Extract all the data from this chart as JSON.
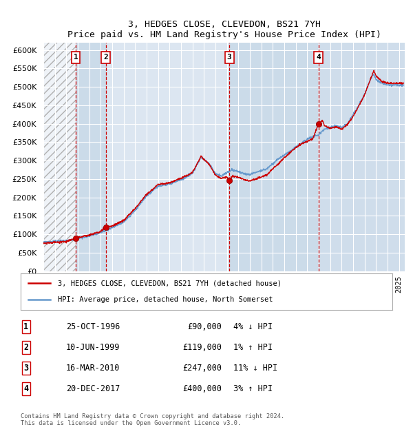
{
  "title": "3, HEDGES CLOSE, CLEVEDON, BS21 7YH",
  "subtitle": "Price paid vs. HM Land Registry's House Price Index (HPI)",
  "ylim": [
    0,
    620000
  ],
  "yticks": [
    0,
    50000,
    100000,
    150000,
    200000,
    250000,
    300000,
    350000,
    400000,
    450000,
    500000,
    550000,
    600000
  ],
  "xlim_start": 1994.0,
  "xlim_end": 2025.5,
  "background_color": "#ffffff",
  "plot_bg_color": "#dce6f1",
  "grid_color": "#ffffff",
  "sale_color": "#cc0000",
  "hpi_color": "#6699cc",
  "transactions": [
    {
      "num": 1,
      "date_dec": 1996.82,
      "price": 90000,
      "label": "25-OCT-1996",
      "price_str": "£90,000",
      "hpi_str": "4% ↓ HPI"
    },
    {
      "num": 2,
      "date_dec": 1999.44,
      "price": 119000,
      "label": "10-JUN-1999",
      "price_str": "£119,000",
      "hpi_str": "1% ↑ HPI"
    },
    {
      "num": 3,
      "date_dec": 2010.21,
      "price": 247000,
      "label": "16-MAR-2010",
      "price_str": "£247,000",
      "hpi_str": "11% ↓ HPI"
    },
    {
      "num": 4,
      "date_dec": 2017.97,
      "price": 400000,
      "label": "20-DEC-2017",
      "price_str": "£400,000",
      "hpi_str": "3% ↑ HPI"
    }
  ],
  "legend_line1": "3, HEDGES CLOSE, CLEVEDON, BS21 7YH (detached house)",
  "legend_line2": "HPI: Average price, detached house, North Somerset",
  "footnote": "Contains HM Land Registry data © Crown copyright and database right 2024.\nThis data is licensed under the Open Government Licence v3.0.",
  "table_rows": [
    [
      "1",
      "25-OCT-1996",
      "£90,000",
      "4% ↓ HPI"
    ],
    [
      "2",
      "10-JUN-1999",
      "£119,000",
      "1% ↑ HPI"
    ],
    [
      "3",
      "16-MAR-2010",
      "£247,000",
      "11% ↓ HPI"
    ],
    [
      "4",
      "20-DEC-2017",
      "£400,000",
      "3% ↑ HPI"
    ]
  ],
  "hpi_anchors": [
    [
      1994.0,
      78000
    ],
    [
      1995.0,
      81000
    ],
    [
      1996.0,
      83000
    ],
    [
      1997.0,
      88000
    ],
    [
      1998.0,
      95000
    ],
    [
      1999.0,
      105000
    ],
    [
      2000.0,
      118000
    ],
    [
      2001.0,
      133000
    ],
    [
      2002.0,
      165000
    ],
    [
      2003.0,
      205000
    ],
    [
      2004.0,
      230000
    ],
    [
      2005.0,
      237000
    ],
    [
      2006.0,
      248000
    ],
    [
      2007.0,
      265000
    ],
    [
      2007.75,
      310000
    ],
    [
      2008.5,
      290000
    ],
    [
      2009.0,
      265000
    ],
    [
      2009.5,
      258000
    ],
    [
      2010.0,
      268000
    ],
    [
      2010.5,
      275000
    ],
    [
      2011.0,
      270000
    ],
    [
      2011.5,
      265000
    ],
    [
      2012.0,
      262000
    ],
    [
      2012.5,
      268000
    ],
    [
      2013.0,
      272000
    ],
    [
      2013.5,
      278000
    ],
    [
      2014.0,
      292000
    ],
    [
      2014.5,
      305000
    ],
    [
      2015.0,
      315000
    ],
    [
      2015.5,
      325000
    ],
    [
      2016.0,
      338000
    ],
    [
      2016.5,
      348000
    ],
    [
      2017.0,
      358000
    ],
    [
      2017.5,
      365000
    ],
    [
      2018.0,
      370000
    ],
    [
      2018.5,
      385000
    ],
    [
      2019.0,
      390000
    ],
    [
      2019.5,
      395000
    ],
    [
      2020.0,
      390000
    ],
    [
      2020.5,
      400000
    ],
    [
      2021.0,
      425000
    ],
    [
      2021.5,
      450000
    ],
    [
      2022.0,
      480000
    ],
    [
      2022.5,
      520000
    ],
    [
      2022.8,
      535000
    ],
    [
      2023.0,
      520000
    ],
    [
      2023.5,
      510000
    ],
    [
      2024.0,
      505000
    ],
    [
      2024.5,
      505000
    ],
    [
      2025.4,
      505000
    ]
  ],
  "sale_anchors": [
    [
      1994.0,
      75000
    ],
    [
      1995.0,
      78000
    ],
    [
      1996.0,
      80000
    ],
    [
      1996.82,
      90000
    ],
    [
      1997.0,
      91000
    ],
    [
      1998.0,
      98000
    ],
    [
      1999.0,
      108000
    ],
    [
      1999.44,
      119000
    ],
    [
      2000.0,
      122000
    ],
    [
      2001.0,
      138000
    ],
    [
      2002.0,
      170000
    ],
    [
      2003.0,
      208000
    ],
    [
      2004.0,
      235000
    ],
    [
      2005.0,
      240000
    ],
    [
      2006.0,
      252000
    ],
    [
      2007.0,
      268000
    ],
    [
      2007.75,
      312000
    ],
    [
      2008.5,
      288000
    ],
    [
      2009.0,
      260000
    ],
    [
      2009.5,
      252000
    ],
    [
      2010.0,
      255000
    ],
    [
      2010.21,
      247000
    ],
    [
      2010.5,
      258000
    ],
    [
      2011.0,
      255000
    ],
    [
      2011.5,
      248000
    ],
    [
      2012.0,
      245000
    ],
    [
      2012.5,
      250000
    ],
    [
      2013.0,
      255000
    ],
    [
      2013.5,
      262000
    ],
    [
      2014.0,
      278000
    ],
    [
      2014.5,
      292000
    ],
    [
      2015.0,
      308000
    ],
    [
      2015.5,
      322000
    ],
    [
      2016.0,
      335000
    ],
    [
      2016.5,
      345000
    ],
    [
      2017.0,
      352000
    ],
    [
      2017.5,
      360000
    ],
    [
      2017.97,
      400000
    ],
    [
      2018.0,
      398000
    ],
    [
      2018.3,
      410000
    ],
    [
      2018.5,
      395000
    ],
    [
      2019.0,
      388000
    ],
    [
      2019.5,
      392000
    ],
    [
      2020.0,
      385000
    ],
    [
      2020.5,
      398000
    ],
    [
      2021.0,
      420000
    ],
    [
      2021.5,
      448000
    ],
    [
      2022.0,
      478000
    ],
    [
      2022.5,
      520000
    ],
    [
      2022.8,
      545000
    ],
    [
      2023.0,
      530000
    ],
    [
      2023.5,
      515000
    ],
    [
      2024.0,
      510000
    ],
    [
      2024.5,
      510000
    ],
    [
      2025.4,
      510000
    ]
  ]
}
